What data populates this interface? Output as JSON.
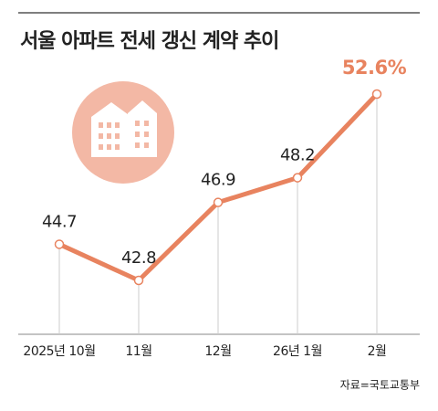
{
  "chart_data": {
    "type": "line",
    "title": "서울 아파트 전세 갱신 계약 추이",
    "categories": [
      "2025년 10월",
      "11월",
      "12월",
      "26년 1월",
      "2월"
    ],
    "values": [
      44.7,
      42.8,
      46.9,
      48.2,
      52.6
    ],
    "value_labels": [
      "44.7",
      "42.8",
      "46.9",
      "48.2",
      "52.6%"
    ],
    "color": "#e8835f",
    "source": "자료=국토교통부"
  }
}
